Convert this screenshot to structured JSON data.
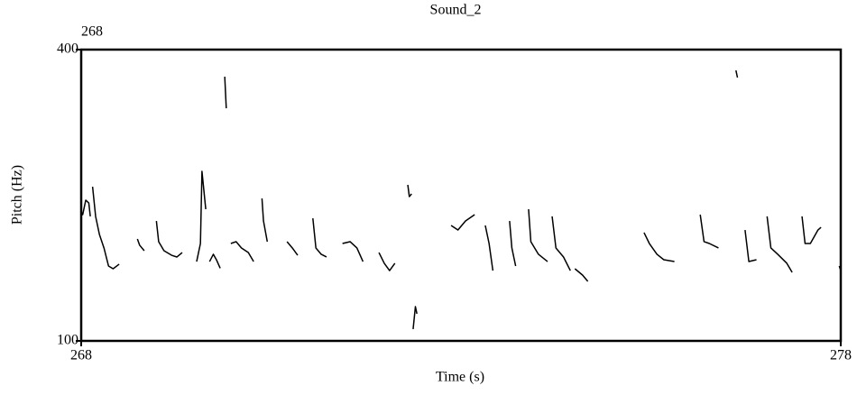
{
  "chart_data": {
    "type": "line",
    "title": "Sound_2",
    "x_label": "Time (s)",
    "y_label": "Pitch (Hz)",
    "annotations": [
      {
        "text": "268"
      }
    ],
    "xlim": [
      268,
      278
    ],
    "ylim": [
      100,
      400
    ],
    "xticks": [
      268,
      278
    ],
    "yticks": [
      100,
      400
    ],
    "grid": false,
    "x": [
      268.0,
      268.02,
      268.06,
      268.1,
      268.12,
      null,
      268.15,
      268.19,
      268.24,
      268.3,
      268.36,
      268.42,
      268.5,
      null,
      268.74,
      268.77,
      268.83,
      null,
      268.99,
      269.02,
      269.09,
      269.19,
      269.26,
      269.33,
      null,
      269.52,
      269.57,
      269.59,
      269.64,
      null,
      269.69,
      269.74,
      269.78,
      269.83,
      null,
      269.89,
      269.91,
      null,
      269.97,
      270.04,
      270.11,
      270.2,
      270.27,
      null,
      270.38,
      270.4,
      270.45,
      null,
      270.71,
      270.78,
      270.85,
      null,
      271.05,
      271.09,
      271.16,
      271.23,
      null,
      271.44,
      271.54,
      271.63,
      271.71,
      null,
      271.92,
      271.99,
      272.06,
      272.13,
      null,
      272.3,
      272.32,
      272.35,
      null,
      272.37,
      272.4,
      272.42,
      null,
      272.87,
      272.96,
      273.06,
      273.18,
      null,
      273.32,
      273.37,
      273.42,
      null,
      273.64,
      273.67,
      273.72,
      null,
      273.89,
      273.92,
      274.02,
      274.14,
      null,
      274.2,
      274.25,
      274.35,
      274.44,
      null,
      274.5,
      274.6,
      274.67,
      null,
      275.41,
      275.48,
      275.58,
      275.67,
      275.81,
      null,
      276.15,
      276.2,
      276.27,
      276.39,
      null,
      276.62,
      276.64,
      null,
      276.74,
      276.79,
      276.89,
      null,
      277.03,
      277.08,
      277.17,
      277.29,
      277.36,
      null,
      277.49,
      277.53,
      277.6,
      277.7,
      277.74,
      null,
      277.98,
      278.0
    ],
    "series": [
      {
        "name": "Pitch",
        "color": "#000000",
        "values": [
          232.8,
          230.0,
          244.9,
          242.1,
          228.2,
          null,
          258.8,
          228.2,
          209.6,
          195.7,
          177.1,
          174.3,
          179.0,
          null,
          205.0,
          198.5,
          192.9,
          null,
          223.5,
          202.2,
          192.9,
          188.2,
          186.4,
          191.0,
          null,
          181.7,
          200.3,
          274.6,
          235.6,
          null,
          181.7,
          189.2,
          183.6,
          174.8,
          null,
          372.1,
          339.6,
          null,
          200.3,
          202.2,
          195.7,
          191.0,
          181.7,
          null,
          246.7,
          223.5,
          202.2,
          null,
          202.2,
          195.7,
          188.2,
          null,
          226.3,
          195.7,
          189.2,
          186.4,
          null,
          200.3,
          202.2,
          195.7,
          181.7,
          null,
          191.0,
          179.9,
          172.4,
          179.9,
          null,
          260.7,
          248.6,
          251.4,
          null,
          112.1,
          135.3,
          127.9,
          null,
          218.9,
          214.2,
          223.5,
          230.0,
          null,
          218.9,
          200.3,
          172.4,
          null,
          223.5,
          195.7,
          177.1,
          null,
          235.6,
          202.2,
          189.2,
          181.7,
          null,
          228.2,
          195.7,
          186.4,
          172.4,
          null,
          174.3,
          167.8,
          161.3,
          null,
          211.5,
          200.3,
          189.2,
          183.6,
          181.7,
          null,
          230.0,
          202.2,
          200.3,
          195.7,
          null,
          378.6,
          371.2,
          null,
          214.2,
          181.7,
          183.6,
          null,
          228.2,
          195.7,
          189.2,
          179.9,
          170.6,
          null,
          228.2,
          200.3,
          200.3,
          214.2,
          217.0,
          null,
          177.1,
          172.4
        ]
      }
    ]
  }
}
